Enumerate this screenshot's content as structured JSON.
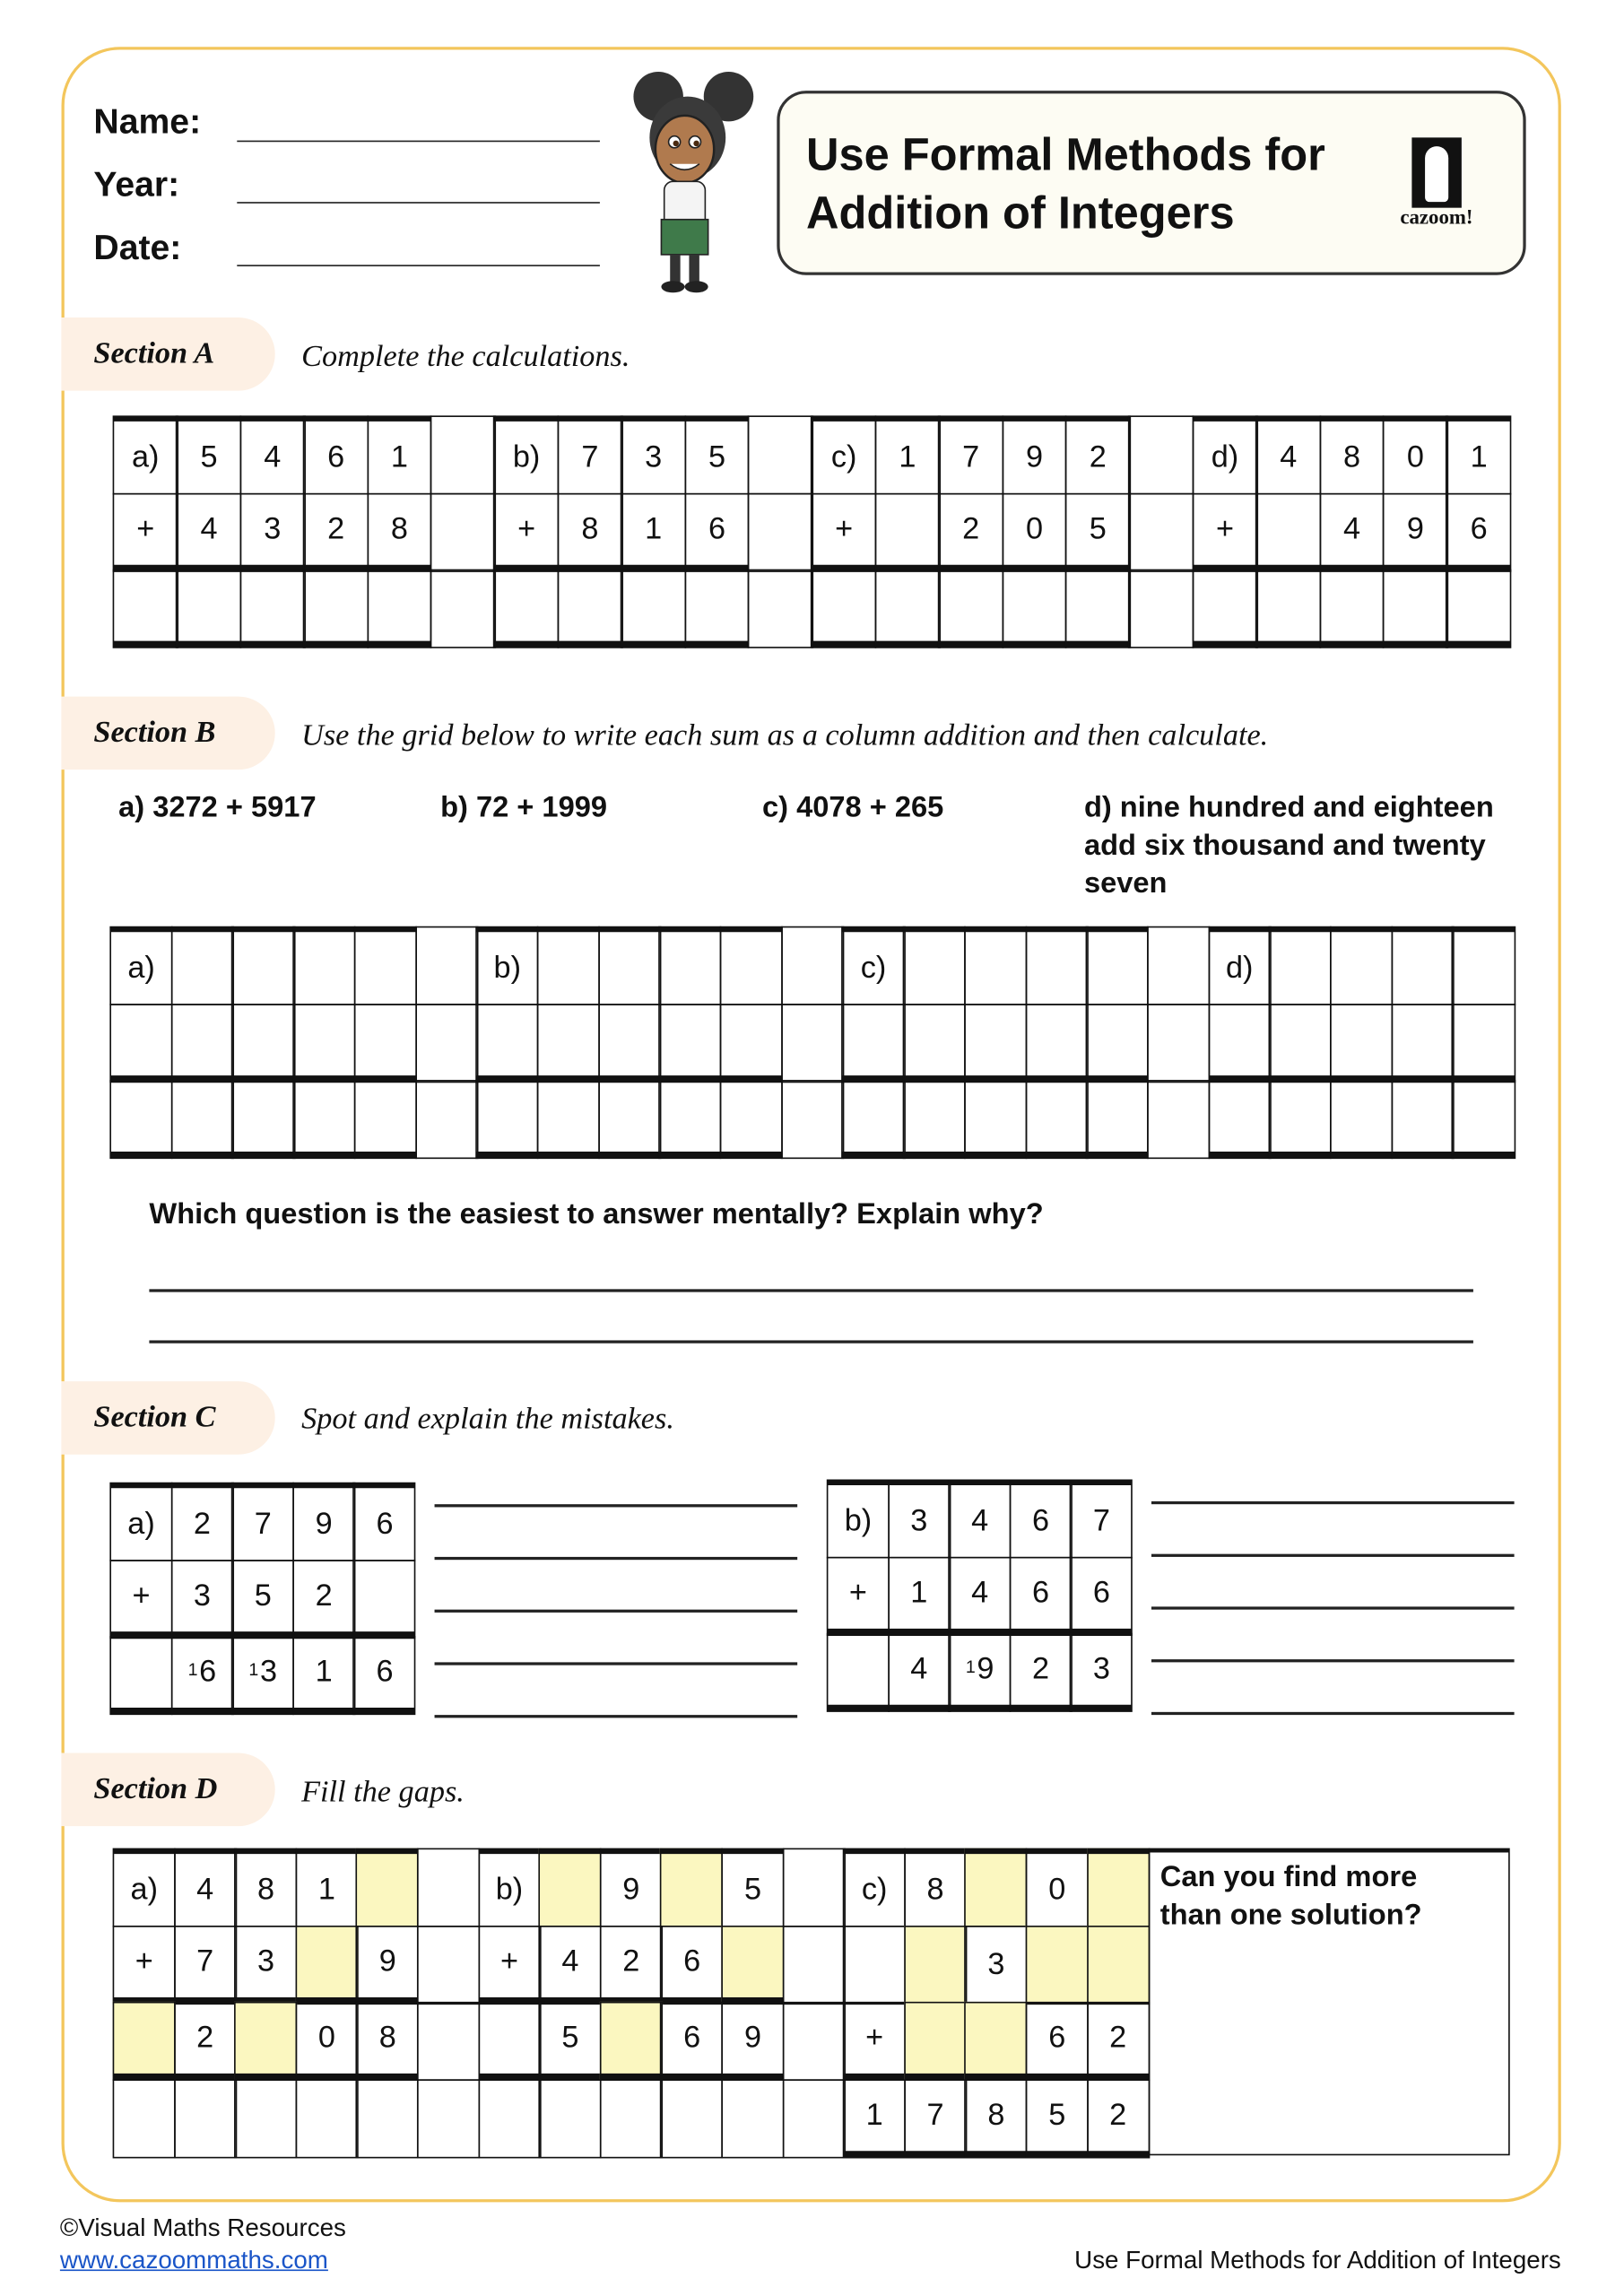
{
  "header": {
    "fields": [
      {
        "label": "Name:"
      },
      {
        "label": "Year:"
      },
      {
        "label": "Date:"
      }
    ],
    "title_line1": "Use Formal Methods for",
    "title_line2": "Addition of Integers",
    "logo_text": "cazoom!",
    "accent_color": "#f3c65c",
    "highlight_color": "#fbf7c0"
  },
  "section_a": {
    "label": "Section A",
    "instruction": "Complete the calculations.",
    "grid": [
      [
        "a)",
        "5",
        "4",
        "6",
        "1",
        null,
        "b)",
        "7",
        "3",
        "5",
        null,
        "c)",
        "1",
        "7",
        "9",
        "2",
        null,
        "d)",
        "4",
        "8",
        "0",
        "1"
      ],
      [
        "+",
        "4",
        "3",
        "2",
        "8",
        null,
        "+",
        "8",
        "1",
        "6",
        null,
        "+",
        "",
        "2",
        "0",
        "5",
        null,
        "+",
        "",
        "4",
        "9",
        "6"
      ],
      [
        "",
        "",
        "",
        "",
        "",
        null,
        "",
        "",
        "",
        "",
        null,
        "",
        "",
        "",
        "",
        "",
        null,
        "",
        "",
        "",
        "",
        ""
      ]
    ]
  },
  "section_b": {
    "label": "Section B",
    "instruction": "Use the grid below to write each sum as a column addition and then calculate.",
    "questions": [
      "a) 3272 + 5917",
      "b) 72 + 1999",
      "c) 4078 + 265",
      "d) nine hundred and eighteen add six thousand and twenty seven"
    ],
    "grid": [
      [
        "a)",
        "",
        "",
        "",
        "",
        null,
        "b)",
        "",
        "",
        "",
        "",
        null,
        "c)",
        "",
        "",
        "",
        "",
        null,
        "d)",
        "",
        "",
        "",
        ""
      ],
      [
        "",
        "",
        "",
        "",
        "",
        null,
        "",
        "",
        "",
        "",
        "",
        null,
        "",
        "",
        "",
        "",
        "",
        null,
        "",
        "",
        "",
        "",
        ""
      ],
      [
        "",
        "",
        "",
        "",
        "",
        null,
        "",
        "",
        "",
        "",
        "",
        null,
        "",
        "",
        "",
        "",
        "",
        null,
        "",
        "",
        "",
        "",
        ""
      ]
    ],
    "followup": "Which question is the easiest to answer mentally? Explain why?"
  },
  "section_c": {
    "label": "Section C",
    "instruction": "Spot and explain the mistakes.",
    "grid_a": [
      [
        "a)",
        "2",
        "7",
        "9",
        "6"
      ],
      [
        "+",
        "3",
        "5",
        "2",
        ""
      ],
      [
        "",
        {
          "carry": "1",
          "v": "6"
        },
        {
          "carry": "1",
          "v": "3"
        },
        "1",
        "6"
      ]
    ],
    "grid_b": [
      [
        "b)",
        "3",
        "4",
        "6",
        "7"
      ],
      [
        "+",
        "1",
        "4",
        "6",
        "6"
      ],
      [
        "",
        "4",
        {
          "carry": "1",
          "v": "9"
        },
        "2",
        "3"
      ]
    ]
  },
  "section_d": {
    "label": "Section D",
    "instruction": "Fill the gaps.",
    "grid": [
      [
        "a)",
        "4",
        "8",
        "1",
        "",
        null,
        "b)",
        "",
        "9",
        "",
        "5",
        null,
        "c)",
        "8",
        "",
        "0",
        ""
      ],
      [
        "+",
        "7",
        "3",
        "",
        "9",
        null,
        "+",
        "4",
        "2",
        "6",
        "",
        null,
        "",
        "",
        "3",
        "",
        ""
      ],
      [
        "",
        "2",
        "",
        "0",
        "8",
        null,
        "",
        "5",
        "",
        "6",
        "9",
        null,
        "+",
        "",
        "",
        "6",
        "2"
      ],
      [
        "",
        "",
        "",
        "",
        "",
        null,
        "",
        "",
        "",
        "",
        "",
        null,
        "1",
        "7",
        "8",
        "5",
        "2"
      ]
    ],
    "highlighted_cells": [
      [
        0,
        4
      ],
      [
        0,
        7
      ],
      [
        0,
        9
      ],
      [
        0,
        14
      ],
      [
        0,
        16
      ],
      [
        1,
        3
      ],
      [
        1,
        10
      ],
      [
        1,
        13
      ],
      [
        1,
        15
      ],
      [
        1,
        16
      ],
      [
        2,
        0
      ],
      [
        2,
        2
      ],
      [
        2,
        8
      ],
      [
        2,
        13
      ],
      [
        2,
        14
      ]
    ],
    "prompt": "Can you find more than one solution?"
  },
  "footer": {
    "copyright": "©Visual Maths Resources",
    "link": "www.cazoommaths.com",
    "right_title": "Use Formal Methods for Addition of Integers"
  }
}
